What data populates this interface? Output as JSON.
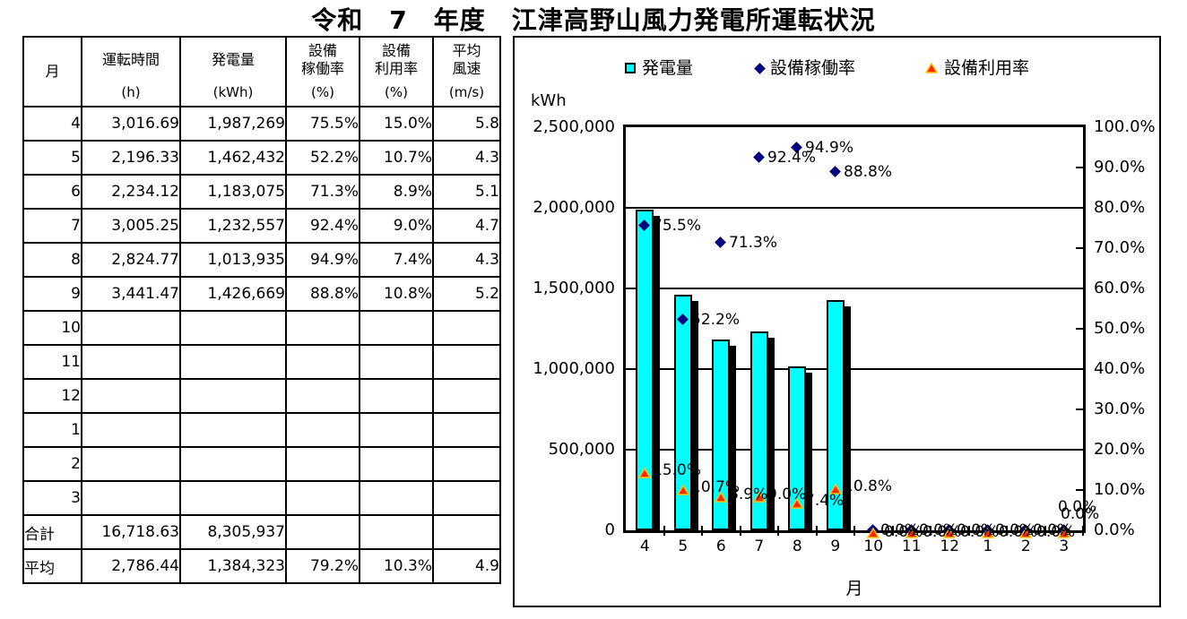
{
  "title": "令和　7　年度　江津高野山風力発電所運転状況",
  "table": {
    "columns": [
      {
        "label": "月",
        "unit": ""
      },
      {
        "label": "運転時間",
        "unit": "(h)"
      },
      {
        "label": "発電量",
        "unit": "(kWh)"
      },
      {
        "label": "設備\n稼働率",
        "unit": "(%)"
      },
      {
        "label": "設備\n利用率",
        "unit": "(%)"
      },
      {
        "label": "平均\n風速",
        "unit": "(m/s)"
      }
    ],
    "rows": [
      [
        "4",
        "3,016.69",
        "1,987,269",
        "75.5%",
        "15.0%",
        "5.8"
      ],
      [
        "5",
        "2,196.33",
        "1,462,432",
        "52.2%",
        "10.7%",
        "4.3"
      ],
      [
        "6",
        "2,234.12",
        "1,183,075",
        "71.3%",
        "8.9%",
        "5.1"
      ],
      [
        "7",
        "3,005.25",
        "1,232,557",
        "92.4%",
        "9.0%",
        "4.7"
      ],
      [
        "8",
        "2,824.77",
        "1,013,935",
        "94.9%",
        "7.4%",
        "4.3"
      ],
      [
        "9",
        "3,441.47",
        "1,426,669",
        "88.8%",
        "10.8%",
        "5.2"
      ],
      [
        "10",
        "",
        "",
        "",
        "",
        ""
      ],
      [
        "11",
        "",
        "",
        "",
        "",
        ""
      ],
      [
        "12",
        "",
        "",
        "",
        "",
        ""
      ],
      [
        "1",
        "",
        "",
        "",
        "",
        ""
      ],
      [
        "2",
        "",
        "",
        "",
        "",
        ""
      ],
      [
        "3",
        "",
        "",
        "",
        "",
        ""
      ],
      [
        "合計",
        "16,718.63",
        "8,305,937",
        "",
        "",
        ""
      ],
      [
        "平均",
        "2,786.44",
        "1,384,323",
        "79.2%",
        "10.3%",
        "4.9"
      ]
    ]
  },
  "chart_data": {
    "type": "bar",
    "subtype": "bar + scatter combo, dual axis",
    "categories": [
      "4",
      "5",
      "6",
      "7",
      "8",
      "9",
      "10",
      "11",
      "12",
      "1",
      "2",
      "3"
    ],
    "series": [
      {
        "name": "発電量",
        "type": "bar",
        "axis": "left",
        "color": "#00FFFF",
        "values": [
          1987269,
          1462432,
          1183075,
          1232557,
          1013935,
          1426669,
          null,
          null,
          null,
          null,
          null,
          null
        ]
      },
      {
        "name": "設備稼働率",
        "type": "scatter",
        "marker": "diamond",
        "axis": "right",
        "color": "#000080",
        "values": [
          75.5,
          52.2,
          71.3,
          92.4,
          94.9,
          88.8,
          0,
          0,
          0,
          0,
          0,
          0
        ],
        "labels": [
          "75.5%",
          "52.2%",
          "71.3%",
          "92.4%",
          "94.9%",
          "88.8%",
          "0.0%",
          "0.0%",
          "0.0%",
          "0.0%",
          "0.0%",
          "0.0%"
        ]
      },
      {
        "name": "設備利用率",
        "type": "scatter",
        "marker": "triangle",
        "axis": "right",
        "color": "#FF2600",
        "marker_edge": "#FFC100",
        "values": [
          15.0,
          10.7,
          8.9,
          9.0,
          7.4,
          10.8,
          0,
          0,
          0,
          0,
          0,
          0
        ],
        "labels": [
          "15.0%",
          "10.7%",
          "8.9%",
          "9.0%",
          "7.4%",
          "10.8%",
          "0.0%",
          "0.0%",
          "0.0%",
          "0.0%",
          "0.0%",
          "0.0%"
        ]
      }
    ],
    "left_axis": {
      "title": "kWh",
      "min": 0,
      "max": 2500000,
      "step": 500000,
      "tick_labels": [
        "2,500,000",
        "2,000,000",
        "1,500,000",
        "1,000,000",
        "500,000",
        "0"
      ]
    },
    "right_axis": {
      "min": 0,
      "max": 100,
      "step": 10,
      "tick_labels": [
        "100.0%",
        "90.0%",
        "80.0%",
        "70.0%",
        "60.0%",
        "50.0%",
        "40.0%",
        "30.0%",
        "20.0%",
        "10.0%",
        "0.0%"
      ]
    },
    "x_axis": {
      "title": "月"
    },
    "grid": "horizontal lines every 500,000 kWh (20%)",
    "legend_position": "top"
  }
}
